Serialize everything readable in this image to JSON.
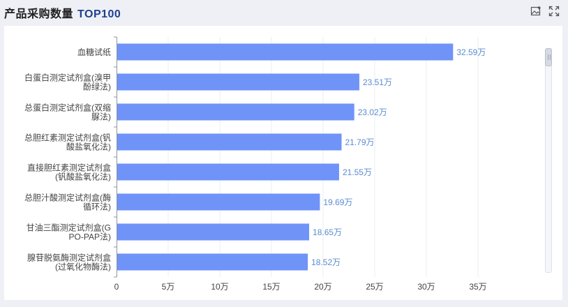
{
  "header": {
    "title": "产品采购数量",
    "title_accent": "TOP100",
    "icons": [
      "save-image-icon",
      "fullscreen-icon"
    ]
  },
  "colors": {
    "bar": "#6f93f7",
    "label": "#5b8bd0",
    "axis": "#8c95a6",
    "grid": "#e8ecf2",
    "text": "#444444"
  },
  "chart_data": {
    "type": "bar",
    "orientation": "horizontal",
    "categories": [
      [
        "血糖试纸"
      ],
      [
        "白蛋白测定试剂盒(溴甲",
        "酚绿法)"
      ],
      [
        "总蛋白测定试剂盒(双缩",
        "脲法)"
      ],
      [
        "总胆红素测定试剂盒(钒",
        "酸盐氧化法)"
      ],
      [
        "直接胆红素测定试剂盒",
        "(钒酸盐氧化法)"
      ],
      [
        "总胆汁酸测定试剂盒(酶",
        "循环法)"
      ],
      [
        "甘油三酯测定试剂盒(G",
        "PO-PAP法)"
      ],
      [
        "腺苷脱氨酶测定试剂盒",
        "(过氧化物酶法)"
      ]
    ],
    "values": [
      32.59,
      23.51,
      23.02,
      21.79,
      21.55,
      19.69,
      18.65,
      18.52
    ],
    "value_labels": [
      "32.59万",
      "23.51万",
      "23.02万",
      "21.79万",
      "21.55万",
      "19.69万",
      "18.65万",
      "18.52万"
    ],
    "xticks": [
      0,
      5,
      10,
      15,
      20,
      25,
      30,
      35
    ],
    "xtick_labels": [
      "0",
      "5万",
      "10万",
      "15万",
      "20万",
      "25万",
      "30万",
      "35万"
    ],
    "xlim": [
      0,
      35
    ],
    "grid": true,
    "datazoom_slider": "right"
  }
}
